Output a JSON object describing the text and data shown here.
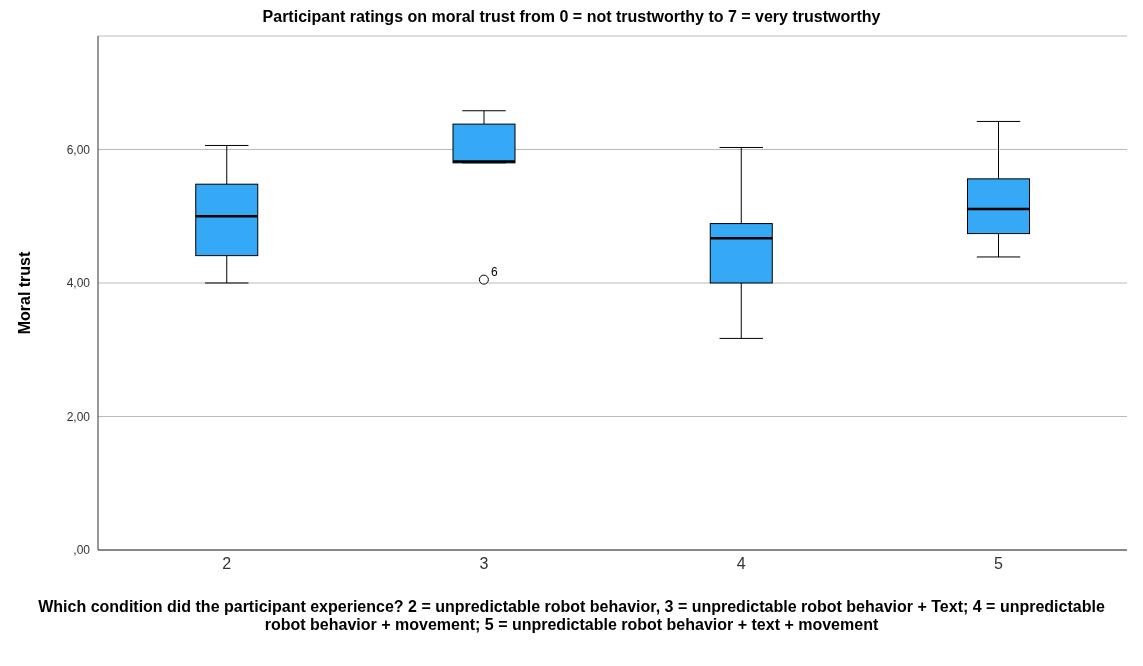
{
  "chart_data": {
    "type": "box",
    "title": "Participant ratings on moral trust from 0 = not trustworthy to 7 = very trustworthy",
    "xlabel": "Which condition did the participant experience? 2 = unpredictable robot behavior, 3 = unpredictable robot behavior + Text; 4 = unpredictable robot behavior + movement; 5 = unpredictable robot behavior + text + movement",
    "ylabel": "Moral trust",
    "categories": [
      "2",
      "3",
      "4",
      "5"
    ],
    "color": "#35a9f5",
    "boxes": [
      {
        "low": 4.0,
        "q1": 4.41,
        "median": 5.0,
        "q3": 5.48,
        "high": 6.06
      },
      {
        "low": 5.8,
        "q1": 5.8,
        "median": 5.82,
        "q3": 6.38,
        "high": 6.58,
        "outliers": [
          4.05
        ]
      },
      {
        "low": 3.17,
        "q1": 4.0,
        "median": 4.67,
        "q3": 4.89,
        "high": 6.03
      },
      {
        "low": 4.39,
        "q1": 4.74,
        "median": 5.11,
        "q3": 5.56,
        "high": 6.42
      }
    ],
    "ylim": [
      0,
      7.7
    ],
    "yticks": [
      {
        "value": 0,
        "label": ",00"
      },
      {
        "value": 2,
        "label": "2,00"
      },
      {
        "value": 4,
        "label": "4,00"
      },
      {
        "value": 6,
        "label": "6,00"
      }
    ],
    "grid": "y",
    "annotations": [
      "6"
    ]
  }
}
